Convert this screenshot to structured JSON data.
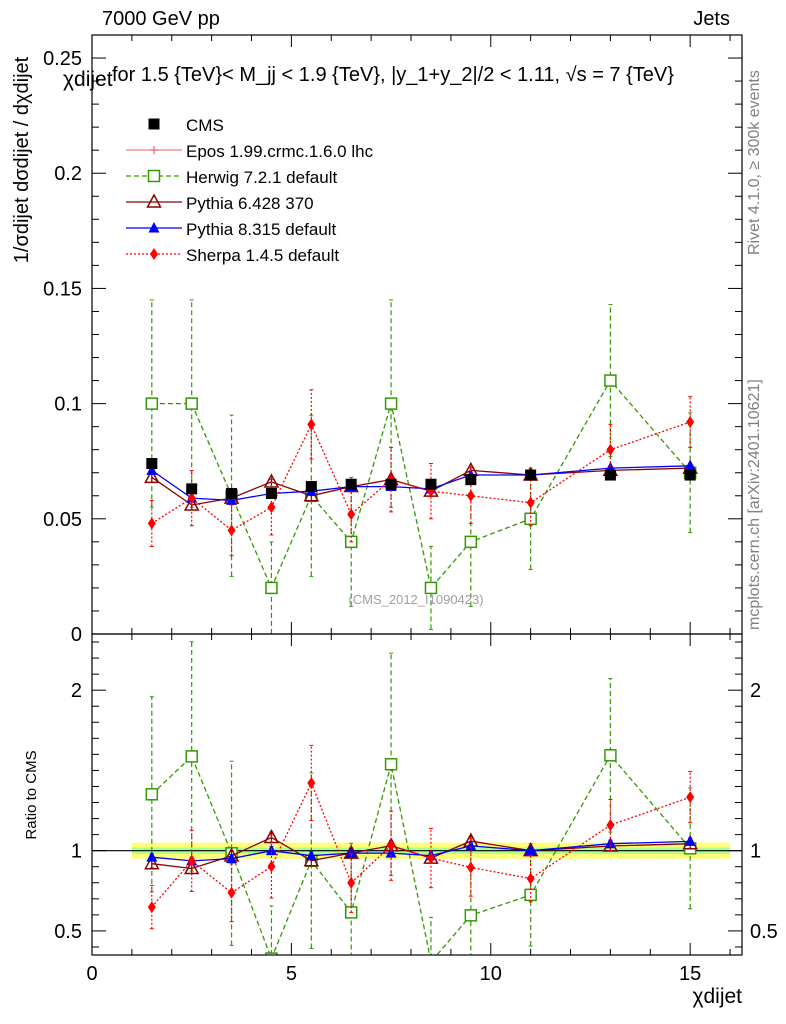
{
  "header": {
    "left": "7000 GeV pp",
    "right": "Jets"
  },
  "side_labels": {
    "rivet": "Rivet 4.1.0, ≥ 300k events",
    "mcplots": "mcplots.cern.ch [arXiv:2401.10621]"
  },
  "chart_data": {
    "type": "scatter",
    "title": "for 1.5 {TeV}< M_jj < 1.9 {TeV}, |y_1+y_2|/2 < 1.11, √s = 7 {TeV}",
    "title_prefix": "χdijet",
    "watermark": "(CMS_2012_I1090423)",
    "ylabel_main": "1/σdijet dσdijet / dχdijet",
    "ylabel_ratio": "Ratio to CMS",
    "xlabel": "χdijet",
    "xlim": [
      0,
      16.3
    ],
    "ylim_main": [
      0,
      0.26
    ],
    "ylim_ratio": [
      0.35,
      2.35
    ],
    "x_ticks": [
      0,
      5,
      10,
      15
    ],
    "x_tick_labels": [
      "0",
      "5",
      "10",
      "15"
    ],
    "y_ticks_main": [
      0,
      0.05,
      0.1,
      0.15,
      0.2,
      0.25
    ],
    "y_tick_labels_main": [
      "0",
      "0.05",
      "0.1",
      "0.15",
      "0.2",
      "0.25"
    ],
    "y_ticks_ratio": [
      0.5,
      1,
      2
    ],
    "y_tick_labels_ratio": [
      "0.5",
      "1",
      "2"
    ],
    "bins": [
      [
        1,
        2
      ],
      [
        2,
        3
      ],
      [
        3,
        4
      ],
      [
        4,
        5
      ],
      [
        5,
        6
      ],
      [
        6,
        7
      ],
      [
        7,
        8
      ],
      [
        8,
        9
      ],
      [
        9,
        10
      ],
      [
        10,
        12
      ],
      [
        12,
        14
      ],
      [
        14,
        16
      ]
    ],
    "x": [
      1.5,
      2.5,
      3.5,
      4.5,
      5.5,
      6.5,
      7.5,
      8.5,
      9.5,
      11,
      13,
      15
    ],
    "series": [
      {
        "name": "CMS",
        "color": "#000000",
        "marker": "square-filled",
        "line": "none",
        "values": [
          0.074,
          0.063,
          0.061,
          0.061,
          0.064,
          0.065,
          0.065,
          0.065,
          0.067,
          0.069,
          0.069,
          0.069
        ],
        "errors": [
          0.002,
          0.002,
          0.002,
          0.002,
          0.002,
          0.002,
          0.002,
          0.002,
          0.002,
          0.002,
          0.002,
          0.002
        ],
        "band_inner": [
          0.02,
          0.02,
          0.02,
          0.02,
          0.02,
          0.02,
          0.02,
          0.02,
          0.02,
          0.02,
          0.02,
          0.02
        ],
        "band_outer": [
          0.05,
          0.05,
          0.05,
          0.05,
          0.05,
          0.05,
          0.05,
          0.05,
          0.05,
          0.05,
          0.05,
          0.05
        ]
      },
      {
        "name": "Epos 1.99.crmc.1.6.0 lhc",
        "color": "#f08080",
        "marker": "cross",
        "line": "solid",
        "values": [],
        "errors": []
      },
      {
        "name": "Herwig 7.2.1 default",
        "color": "#339900",
        "marker": "square-open",
        "line": "dashed",
        "values": [
          0.1,
          0.1,
          0.06,
          0.02,
          0.06,
          0.04,
          0.1,
          0.02,
          0.04,
          0.05,
          0.11,
          0.07
        ],
        "errors": [
          0.045,
          0.045,
          0.035,
          0.02,
          0.035,
          0.028,
          0.045,
          0.018,
          0.028,
          0.022,
          0.033,
          0.026
        ]
      },
      {
        "name": "Pythia 6.428 370",
        "color": "#8b0000",
        "marker": "triangle-open",
        "line": "solid",
        "values": [
          0.068,
          0.056,
          0.059,
          0.066,
          0.06,
          0.064,
          0.067,
          0.062,
          0.071,
          0.069,
          0.071,
          0.072
        ],
        "errors": [
          0.002,
          0.002,
          0.002,
          0.002,
          0.002,
          0.002,
          0.002,
          0.002,
          0.002,
          0.002,
          0.002,
          0.002
        ]
      },
      {
        "name": "Pythia 8.315 default",
        "color": "#0000ff",
        "marker": "triangle-filled",
        "line": "solid",
        "values": [
          0.071,
          0.059,
          0.058,
          0.061,
          0.062,
          0.064,
          0.064,
          0.063,
          0.069,
          0.069,
          0.072,
          0.073
        ],
        "errors": [
          0.0015,
          0.0015,
          0.0015,
          0.0015,
          0.0015,
          0.0015,
          0.0015,
          0.0015,
          0.0015,
          0.0015,
          0.0015,
          0.0015
        ]
      },
      {
        "name": "Sherpa 1.4.5 default",
        "color": "#ff0000",
        "marker": "diamond-filled",
        "line": "dotted",
        "values": [
          0.048,
          0.059,
          0.045,
          0.055,
          0.091,
          0.052,
          0.067,
          0.062,
          0.06,
          0.057,
          0.08,
          0.092
        ],
        "errors": [
          0.01,
          0.012,
          0.011,
          0.012,
          0.015,
          0.012,
          0.014,
          0.012,
          0.012,
          0.01,
          0.011,
          0.011
        ]
      }
    ]
  }
}
